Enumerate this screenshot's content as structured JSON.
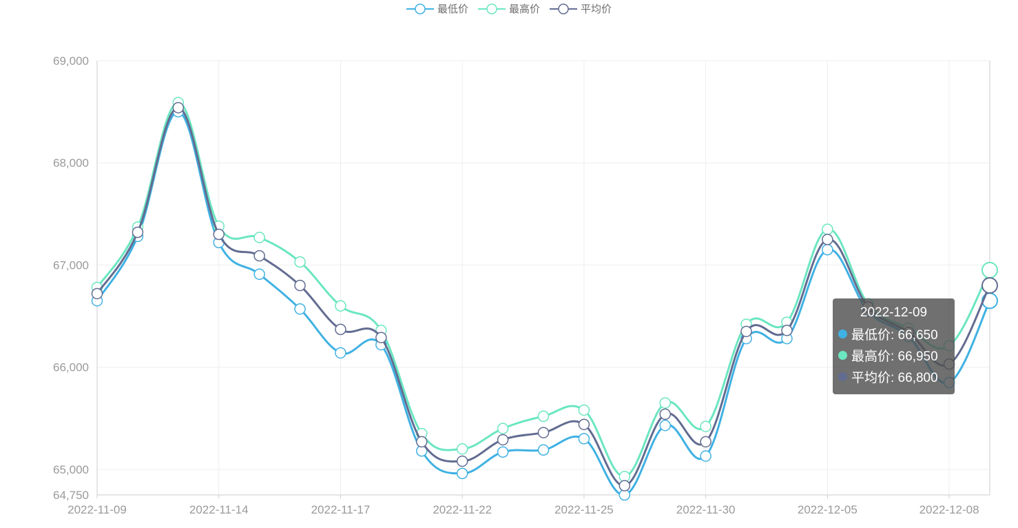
{
  "legend": [
    {
      "name": "最低价",
      "color": "#3fb1e3"
    },
    {
      "name": "最高价",
      "color": "#6be6c1"
    },
    {
      "name": "平均价",
      "color": "#626c91"
    }
  ],
  "tooltip": {
    "title": "2022-12-09",
    "rows": [
      {
        "label": "最低价: 66,650",
        "color": "#3fb1e3"
      },
      {
        "label": "最高价: 66,950",
        "color": "#6be6c1"
      },
      {
        "label": "平均价: 66,800",
        "color": "#626c91"
      }
    ]
  },
  "chart_data": {
    "type": "line",
    "x": [
      "2022-11-09",
      "2022-11-10",
      "2022-11-11",
      "2022-11-14",
      "2022-11-15",
      "2022-11-16",
      "2022-11-17",
      "2022-11-18",
      "2022-11-21",
      "2022-11-22",
      "2022-11-23",
      "2022-11-24",
      "2022-11-25",
      "2022-11-28",
      "2022-11-29",
      "2022-11-30",
      "2022-12-01",
      "2022-12-02",
      "2022-12-05",
      "2022-12-06",
      "2022-12-07",
      "2022-12-08",
      "2022-12-09"
    ],
    "x_tick_labels": [
      "2022-11-09",
      "2022-11-14",
      "2022-11-17",
      "2022-11-22",
      "2022-11-25",
      "2022-11-30",
      "2022-12-05",
      "2022-12-08"
    ],
    "y_ticks": [
      64750,
      65000,
      66000,
      67000,
      68000,
      69000
    ],
    "y_tick_labels": [
      "64,750",
      "65,000",
      "66,000",
      "67,000",
      "68,000",
      "69,000"
    ],
    "ylim": [
      64750,
      69000
    ],
    "grid": true,
    "legend_position": "top-center",
    "series": [
      {
        "name": "最低价",
        "color": "#3fb1e3",
        "values": [
          66650,
          67280,
          68500,
          67220,
          66910,
          66570,
          66140,
          66220,
          65180,
          64960,
          65170,
          65190,
          65300,
          64750,
          65430,
          65130,
          66280,
          66280,
          67150,
          66550,
          66300,
          65850,
          66650
        ]
      },
      {
        "name": "最高价",
        "color": "#6be6c1",
        "values": [
          66780,
          67370,
          68590,
          67380,
          67270,
          67030,
          66600,
          66360,
          65350,
          65200,
          65400,
          65520,
          65580,
          64930,
          65650,
          65420,
          66420,
          66440,
          67350,
          66620,
          66380,
          66210,
          66950
        ]
      },
      {
        "name": "平均价",
        "color": "#626c91",
        "values": [
          66720,
          67320,
          68540,
          67300,
          67090,
          66800,
          66370,
          66290,
          65270,
          65080,
          65290,
          65360,
          65440,
          64840,
          65540,
          65270,
          66350,
          66360,
          67250,
          66590,
          66340,
          66030,
          66800
        ]
      }
    ]
  }
}
